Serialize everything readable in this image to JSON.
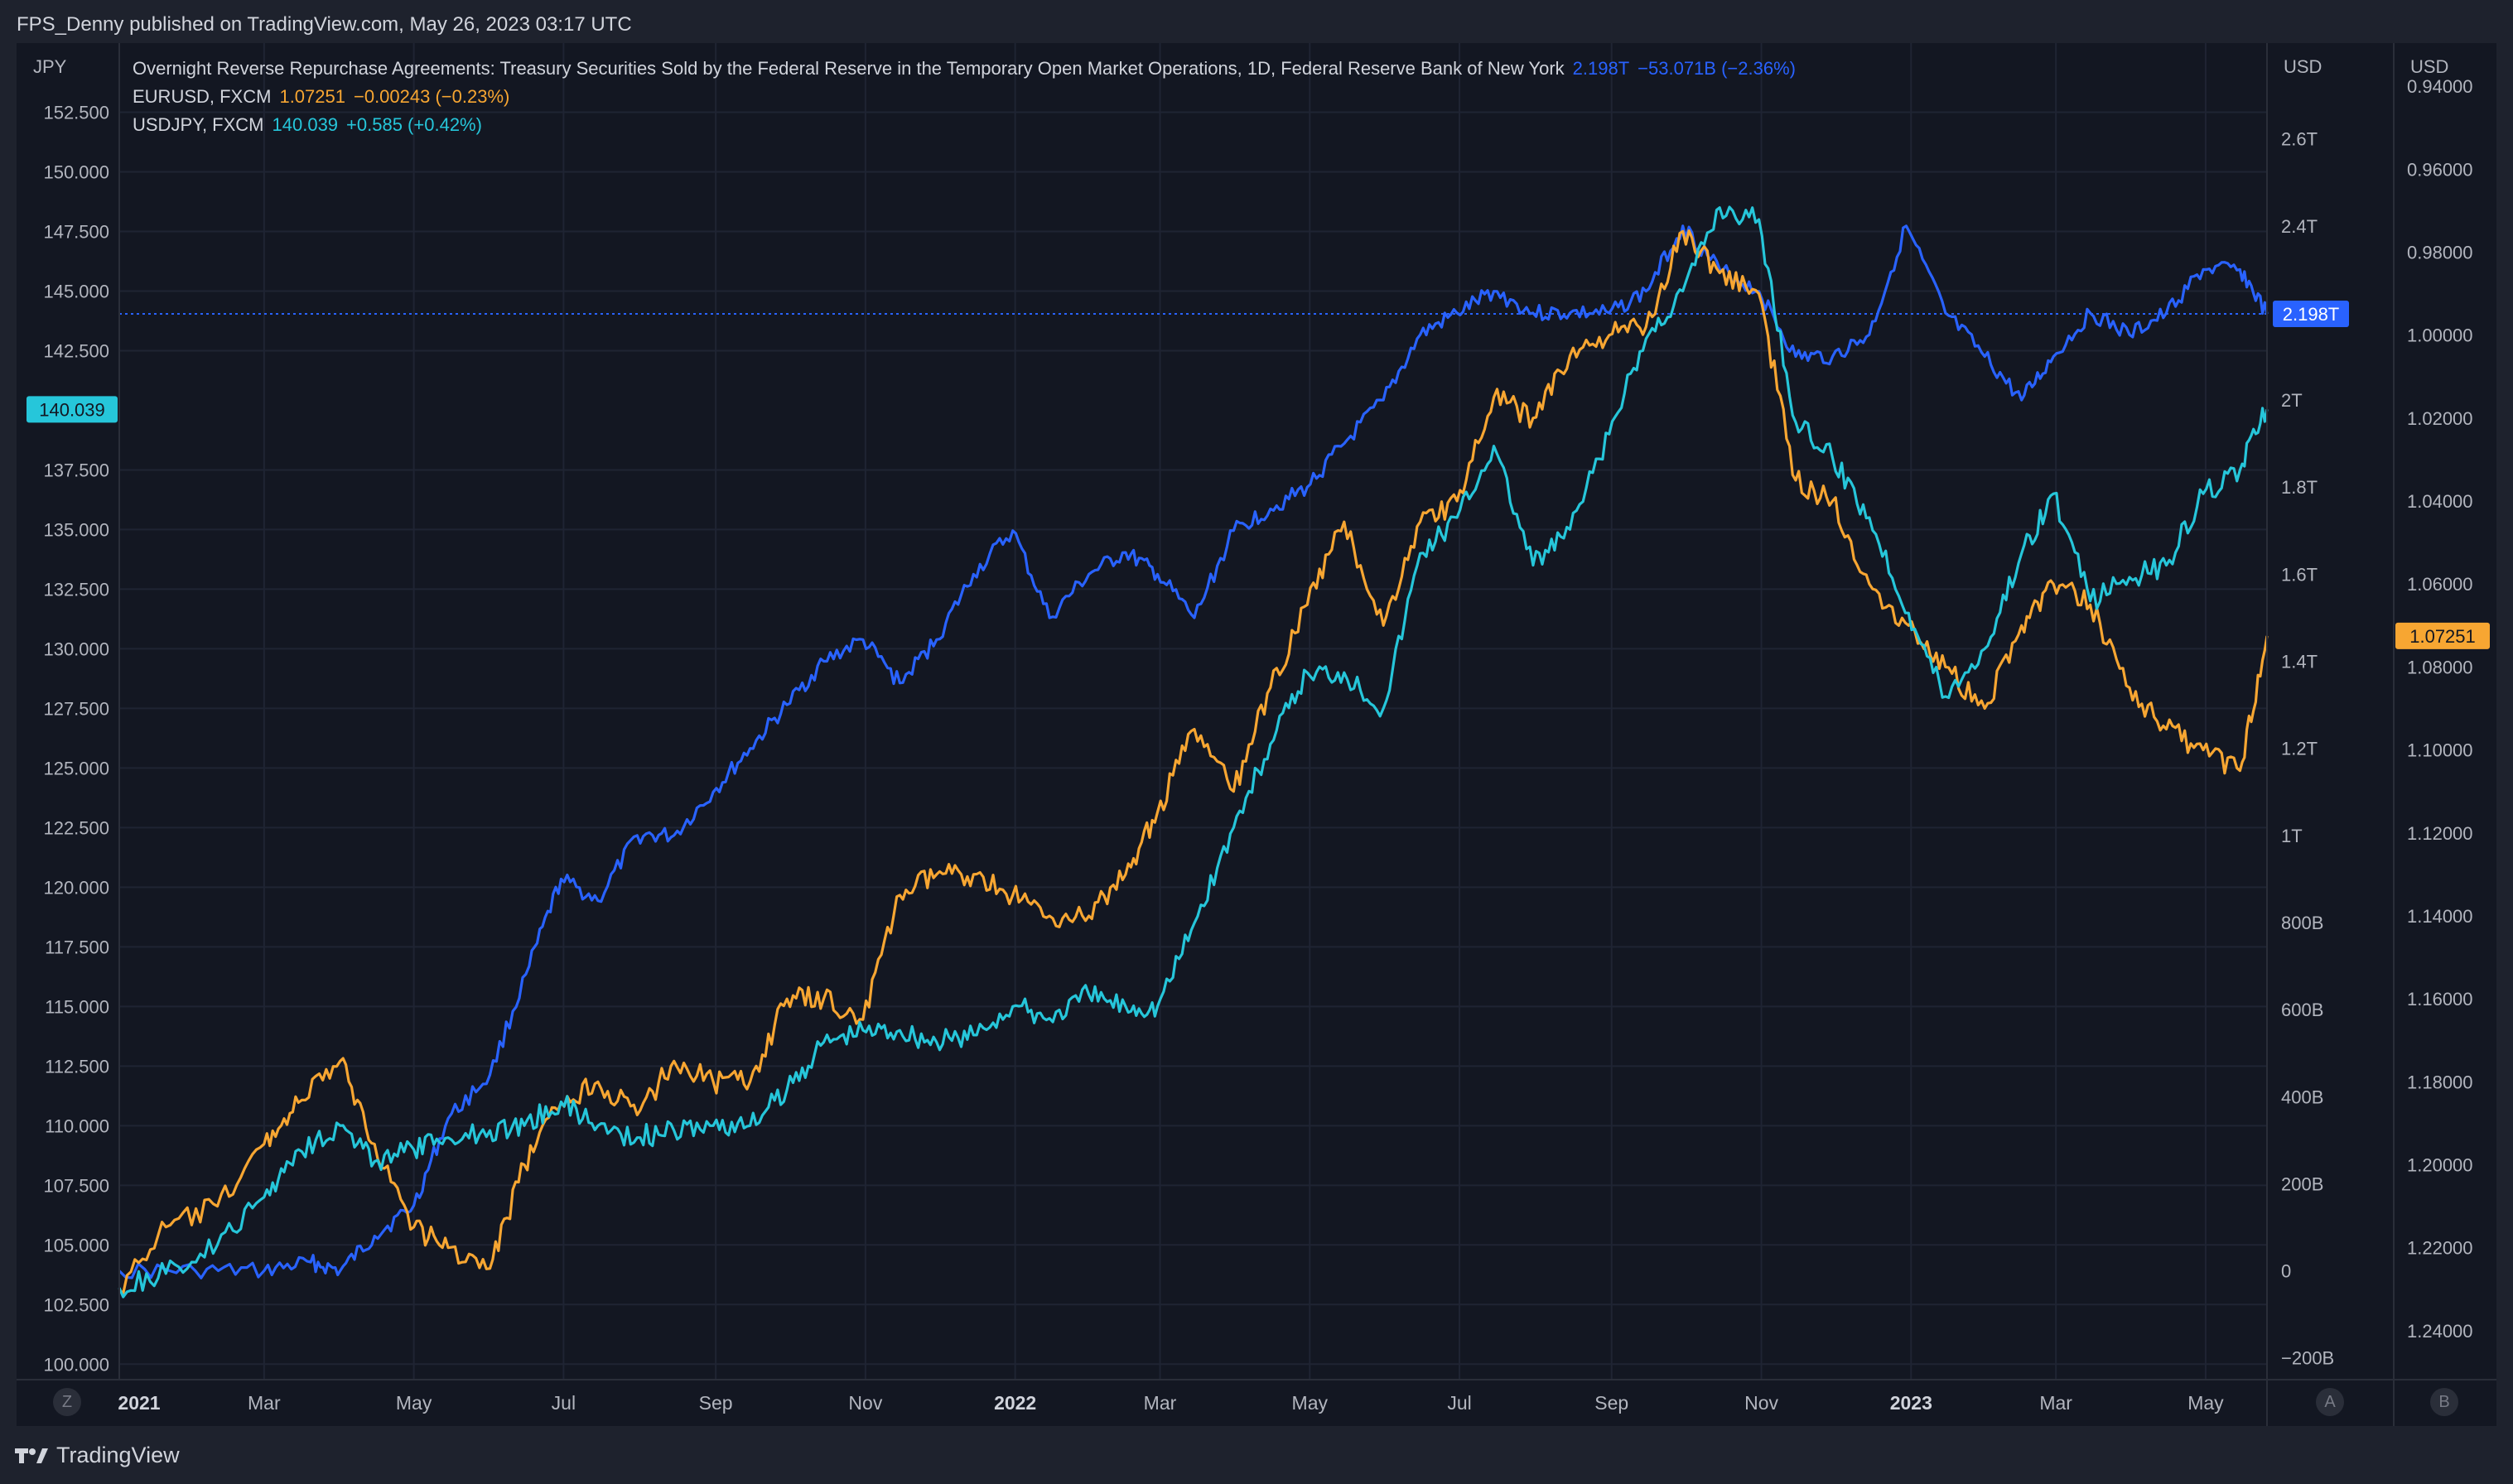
{
  "header": {
    "publisher_text": "FPS_Denny published on TradingView.com, May 26, 2023 03:17 UTC"
  },
  "footer": {
    "brand": "TradingView",
    "logo_icon": "tradingview-logo-icon"
  },
  "legend": [
    {
      "name": "Overnight Reverse Repurchase Agreements: Treasury Securities Sold by the Federal Reserve in the Temporary Open Market Operations, 1D, Federal Reserve Bank of New York",
      "value": "2.198T",
      "change": "−53.071B (−2.36%)",
      "color": "#2962ff"
    },
    {
      "name": "EURUSD, FXCM",
      "value": "1.07251",
      "change": "−0.00243 (−0.23%)",
      "color": "#f7a632"
    },
    {
      "name": "USDJPY, FXCM",
      "value": "140.039",
      "change": "+0.585 (+0.42%)",
      "color": "#26c6da"
    }
  ],
  "corner_buttons": {
    "z": "Z",
    "a": "A",
    "b": "B"
  },
  "chart_data": {
    "type": "line",
    "x_tick_labels": [
      "2021",
      "Mar",
      "May",
      "Jul",
      "Sep",
      "Nov",
      "2022",
      "Mar",
      "May",
      "Jul",
      "Sep",
      "Nov",
      "2023",
      "Mar",
      "May"
    ],
    "x_tick_bold": [
      true,
      false,
      false,
      false,
      false,
      false,
      true,
      false,
      false,
      false,
      false,
      false,
      true,
      false,
      false
    ],
    "x_range": [
      "2021-01-01",
      "2023-05-26"
    ],
    "axes": {
      "left": {
        "title": "JPY",
        "ticks": [
          "152.500",
          "150.000",
          "147.500",
          "145.000",
          "142.500",
          "137.500",
          "135.000",
          "132.500",
          "130.000",
          "127.500",
          "125.000",
          "122.500",
          "120.000",
          "117.500",
          "115.000",
          "112.500",
          "110.000",
          "107.500",
          "105.000",
          "102.500",
          "100.000"
        ],
        "tick_values": [
          152.5,
          150,
          147.5,
          145,
          142.5,
          137.5,
          135,
          132.5,
          130,
          127.5,
          125,
          122.5,
          120,
          117.5,
          115,
          112.5,
          110,
          107.5,
          105,
          102.5,
          100
        ],
        "range": [
          99.35,
          155.4
        ],
        "last_value_label": "140.039",
        "last_value": 140.039,
        "color": "#26c6da"
      },
      "right_usd_rrp": {
        "title": "USD",
        "ticks": [
          "2.6T",
          "2.4T",
          "2T",
          "1.8T",
          "1.6T",
          "1.4T",
          "1.2T",
          "1T",
          "800B",
          "600B",
          "400B",
          "200B",
          "0",
          "−200B"
        ],
        "tick_values": [
          2.6,
          2.4,
          2.0,
          1.8,
          1.6,
          1.4,
          1.2,
          1.0,
          0.8,
          0.6,
          0.4,
          0.2,
          0,
          -0.2
        ],
        "range_trillions": [
          -0.25,
          2.82
        ],
        "last_value_label": "2.198T",
        "last_value": 2.198,
        "color": "#2962ff"
      },
      "right_usd_eur": {
        "title": "USD",
        "inverted": true,
        "ticks": [
          "0.94000",
          "0.96000",
          "0.98000",
          "1.00000",
          "1.02000",
          "1.04000",
          "1.06000",
          "1.08000",
          "1.10000",
          "1.12000",
          "1.14000",
          "1.16000",
          "1.18000",
          "1.20000",
          "1.22000",
          "1.24000"
        ],
        "tick_values": [
          0.94,
          0.96,
          0.98,
          1.0,
          1.02,
          1.04,
          1.06,
          1.08,
          1.1,
          1.12,
          1.14,
          1.16,
          1.18,
          1.2,
          1.22,
          1.24
        ],
        "range": [
          0.9296,
          1.2518
        ],
        "last_value_label": "1.07251",
        "last_value": 1.07251,
        "color": "#f7a632"
      }
    },
    "series": [
      {
        "name": "Overnight Reverse Repurchase Agreements",
        "axis": "right_usd_rrp",
        "color": "#2962ff",
        "x": [
          "2021-01-01",
          "2021-02-01",
          "2021-03-01",
          "2021-03-20",
          "2021-04-01",
          "2021-04-15",
          "2021-05-01",
          "2021-05-15",
          "2021-06-01",
          "2021-06-17",
          "2021-06-30",
          "2021-07-15",
          "2021-07-31",
          "2021-08-15",
          "2021-08-31",
          "2021-09-15",
          "2021-09-30",
          "2021-10-15",
          "2021-10-31",
          "2021-11-15",
          "2021-11-30",
          "2021-12-15",
          "2021-12-31",
          "2022-01-15",
          "2022-01-31",
          "2022-02-15",
          "2022-02-28",
          "2022-03-15",
          "2022-03-31",
          "2022-04-15",
          "2022-04-30",
          "2022-05-15",
          "2022-05-31",
          "2022-06-15",
          "2022-06-30",
          "2022-07-15",
          "2022-07-31",
          "2022-08-15",
          "2022-08-31",
          "2022-09-15",
          "2022-09-30",
          "2022-10-15",
          "2022-10-31",
          "2022-11-15",
          "2022-11-30",
          "2022-12-15",
          "2022-12-30",
          "2023-01-15",
          "2023-01-31",
          "2023-02-15",
          "2023-02-28",
          "2023-03-15",
          "2023-03-31",
          "2023-04-15",
          "2023-04-30",
          "2023-05-15",
          "2023-05-26"
        ],
        "values": [
          0.0,
          0.0,
          0.0,
          0.02,
          0.0,
          0.08,
          0.15,
          0.35,
          0.45,
          0.7,
          0.9,
          0.85,
          1.0,
          1.0,
          1.1,
          1.2,
          1.3,
          1.4,
          1.45,
          1.35,
          1.45,
          1.6,
          1.7,
          1.5,
          1.6,
          1.65,
          1.6,
          1.5,
          1.7,
          1.75,
          1.8,
          1.9,
          2.0,
          2.15,
          2.2,
          2.25,
          2.2,
          2.2,
          2.2,
          2.25,
          2.4,
          2.3,
          2.25,
          2.1,
          2.1,
          2.15,
          2.4,
          2.2,
          2.1,
          2.0,
          2.1,
          2.2,
          2.15,
          2.2,
          2.3,
          2.3,
          2.198
        ]
      },
      {
        "name": "EURUSD, FXCM",
        "axis": "right_usd_eur",
        "color": "#f7a632",
        "x": [
          "2021-01-01",
          "2021-01-20",
          "2021-02-10",
          "2021-03-01",
          "2021-03-15",
          "2021-04-01",
          "2021-04-15",
          "2021-05-01",
          "2021-05-15",
          "2021-06-01",
          "2021-06-15",
          "2021-06-30",
          "2021-07-15",
          "2021-07-31",
          "2021-08-15",
          "2021-08-31",
          "2021-09-15",
          "2021-09-30",
          "2021-10-15",
          "2021-10-31",
          "2021-11-15",
          "2021-11-30",
          "2021-12-15",
          "2021-12-31",
          "2022-01-15",
          "2022-01-31",
          "2022-02-15",
          "2022-02-28",
          "2022-03-15",
          "2022-03-31",
          "2022-04-15",
          "2022-04-30",
          "2022-05-15",
          "2022-05-31",
          "2022-06-15",
          "2022-06-30",
          "2022-07-15",
          "2022-07-31",
          "2022-08-15",
          "2022-08-31",
          "2022-09-15",
          "2022-09-30",
          "2022-10-15",
          "2022-10-31",
          "2022-11-15",
          "2022-11-30",
          "2022-12-15",
          "2022-12-31",
          "2023-01-15",
          "2023-01-31",
          "2023-02-15",
          "2023-02-28",
          "2023-03-15",
          "2023-03-31",
          "2023-04-15",
          "2023-04-30",
          "2023-05-15",
          "2023-05-26"
        ],
        "values": [
          1.23,
          1.215,
          1.21,
          1.195,
          1.185,
          1.175,
          1.195,
          1.215,
          1.22,
          1.225,
          1.2,
          1.185,
          1.18,
          1.188,
          1.175,
          1.18,
          1.18,
          1.16,
          1.16,
          1.165,
          1.135,
          1.13,
          1.13,
          1.135,
          1.14,
          1.14,
          1.13,
          1.115,
          1.095,
          1.11,
          1.085,
          1.065,
          1.045,
          1.07,
          1.045,
          1.04,
          1.015,
          1.02,
          1.005,
          1.0,
          0.998,
          0.975,
          0.985,
          0.99,
          1.035,
          1.04,
          1.06,
          1.07,
          1.08,
          1.09,
          1.07,
          1.06,
          1.065,
          1.085,
          1.095,
          1.1,
          1.105,
          1.07251
        ]
      },
      {
        "name": "USDJPY, FXCM",
        "axis": "left",
        "color": "#26c6da",
        "x": [
          "2021-01-01",
          "2021-01-20",
          "2021-02-10",
          "2021-03-01",
          "2021-03-15",
          "2021-04-01",
          "2021-04-15",
          "2021-05-01",
          "2021-05-15",
          "2021-06-01",
          "2021-06-15",
          "2021-06-30",
          "2021-07-15",
          "2021-07-31",
          "2021-08-15",
          "2021-08-31",
          "2021-09-15",
          "2021-09-30",
          "2021-10-15",
          "2021-10-31",
          "2021-11-15",
          "2021-11-30",
          "2021-12-15",
          "2021-12-31",
          "2022-01-15",
          "2022-01-31",
          "2022-02-15",
          "2022-02-28",
          "2022-03-15",
          "2022-03-31",
          "2022-04-15",
          "2022-04-30",
          "2022-05-15",
          "2022-05-31",
          "2022-06-15",
          "2022-06-30",
          "2022-07-15",
          "2022-07-31",
          "2022-08-15",
          "2022-08-31",
          "2022-09-15",
          "2022-09-30",
          "2022-10-15",
          "2022-10-31",
          "2022-11-15",
          "2022-11-30",
          "2022-12-15",
          "2022-12-31",
          "2023-01-15",
          "2023-01-31",
          "2023-02-15",
          "2023-02-28",
          "2023-03-15",
          "2023-03-31",
          "2023-04-15",
          "2023-04-30",
          "2023-05-15",
          "2023-05-26"
        ],
        "values": [
          103.2,
          103.8,
          105.0,
          107.0,
          109.0,
          110.0,
          108.5,
          109.0,
          109.5,
          109.8,
          110.0,
          111.0,
          110.0,
          109.5,
          109.8,
          110.0,
          110.0,
          111.5,
          113.5,
          114.0,
          114.0,
          113.5,
          113.8,
          115.0,
          114.5,
          115.5,
          115.0,
          115.0,
          118.5,
          122.5,
          126.0,
          129.0,
          129.0,
          127.5,
          134.0,
          135.5,
          138.5,
          133.5,
          135.0,
          139.0,
          143.0,
          145.0,
          148.5,
          148.0,
          139.5,
          138.0,
          135.5,
          131.5,
          128.0,
          130.0,
          134.0,
          136.5,
          132.0,
          133.0,
          133.5,
          136.5,
          137.5,
          140.039
        ]
      }
    ],
    "grid": true,
    "rrp_reference_line": 2.198
  }
}
